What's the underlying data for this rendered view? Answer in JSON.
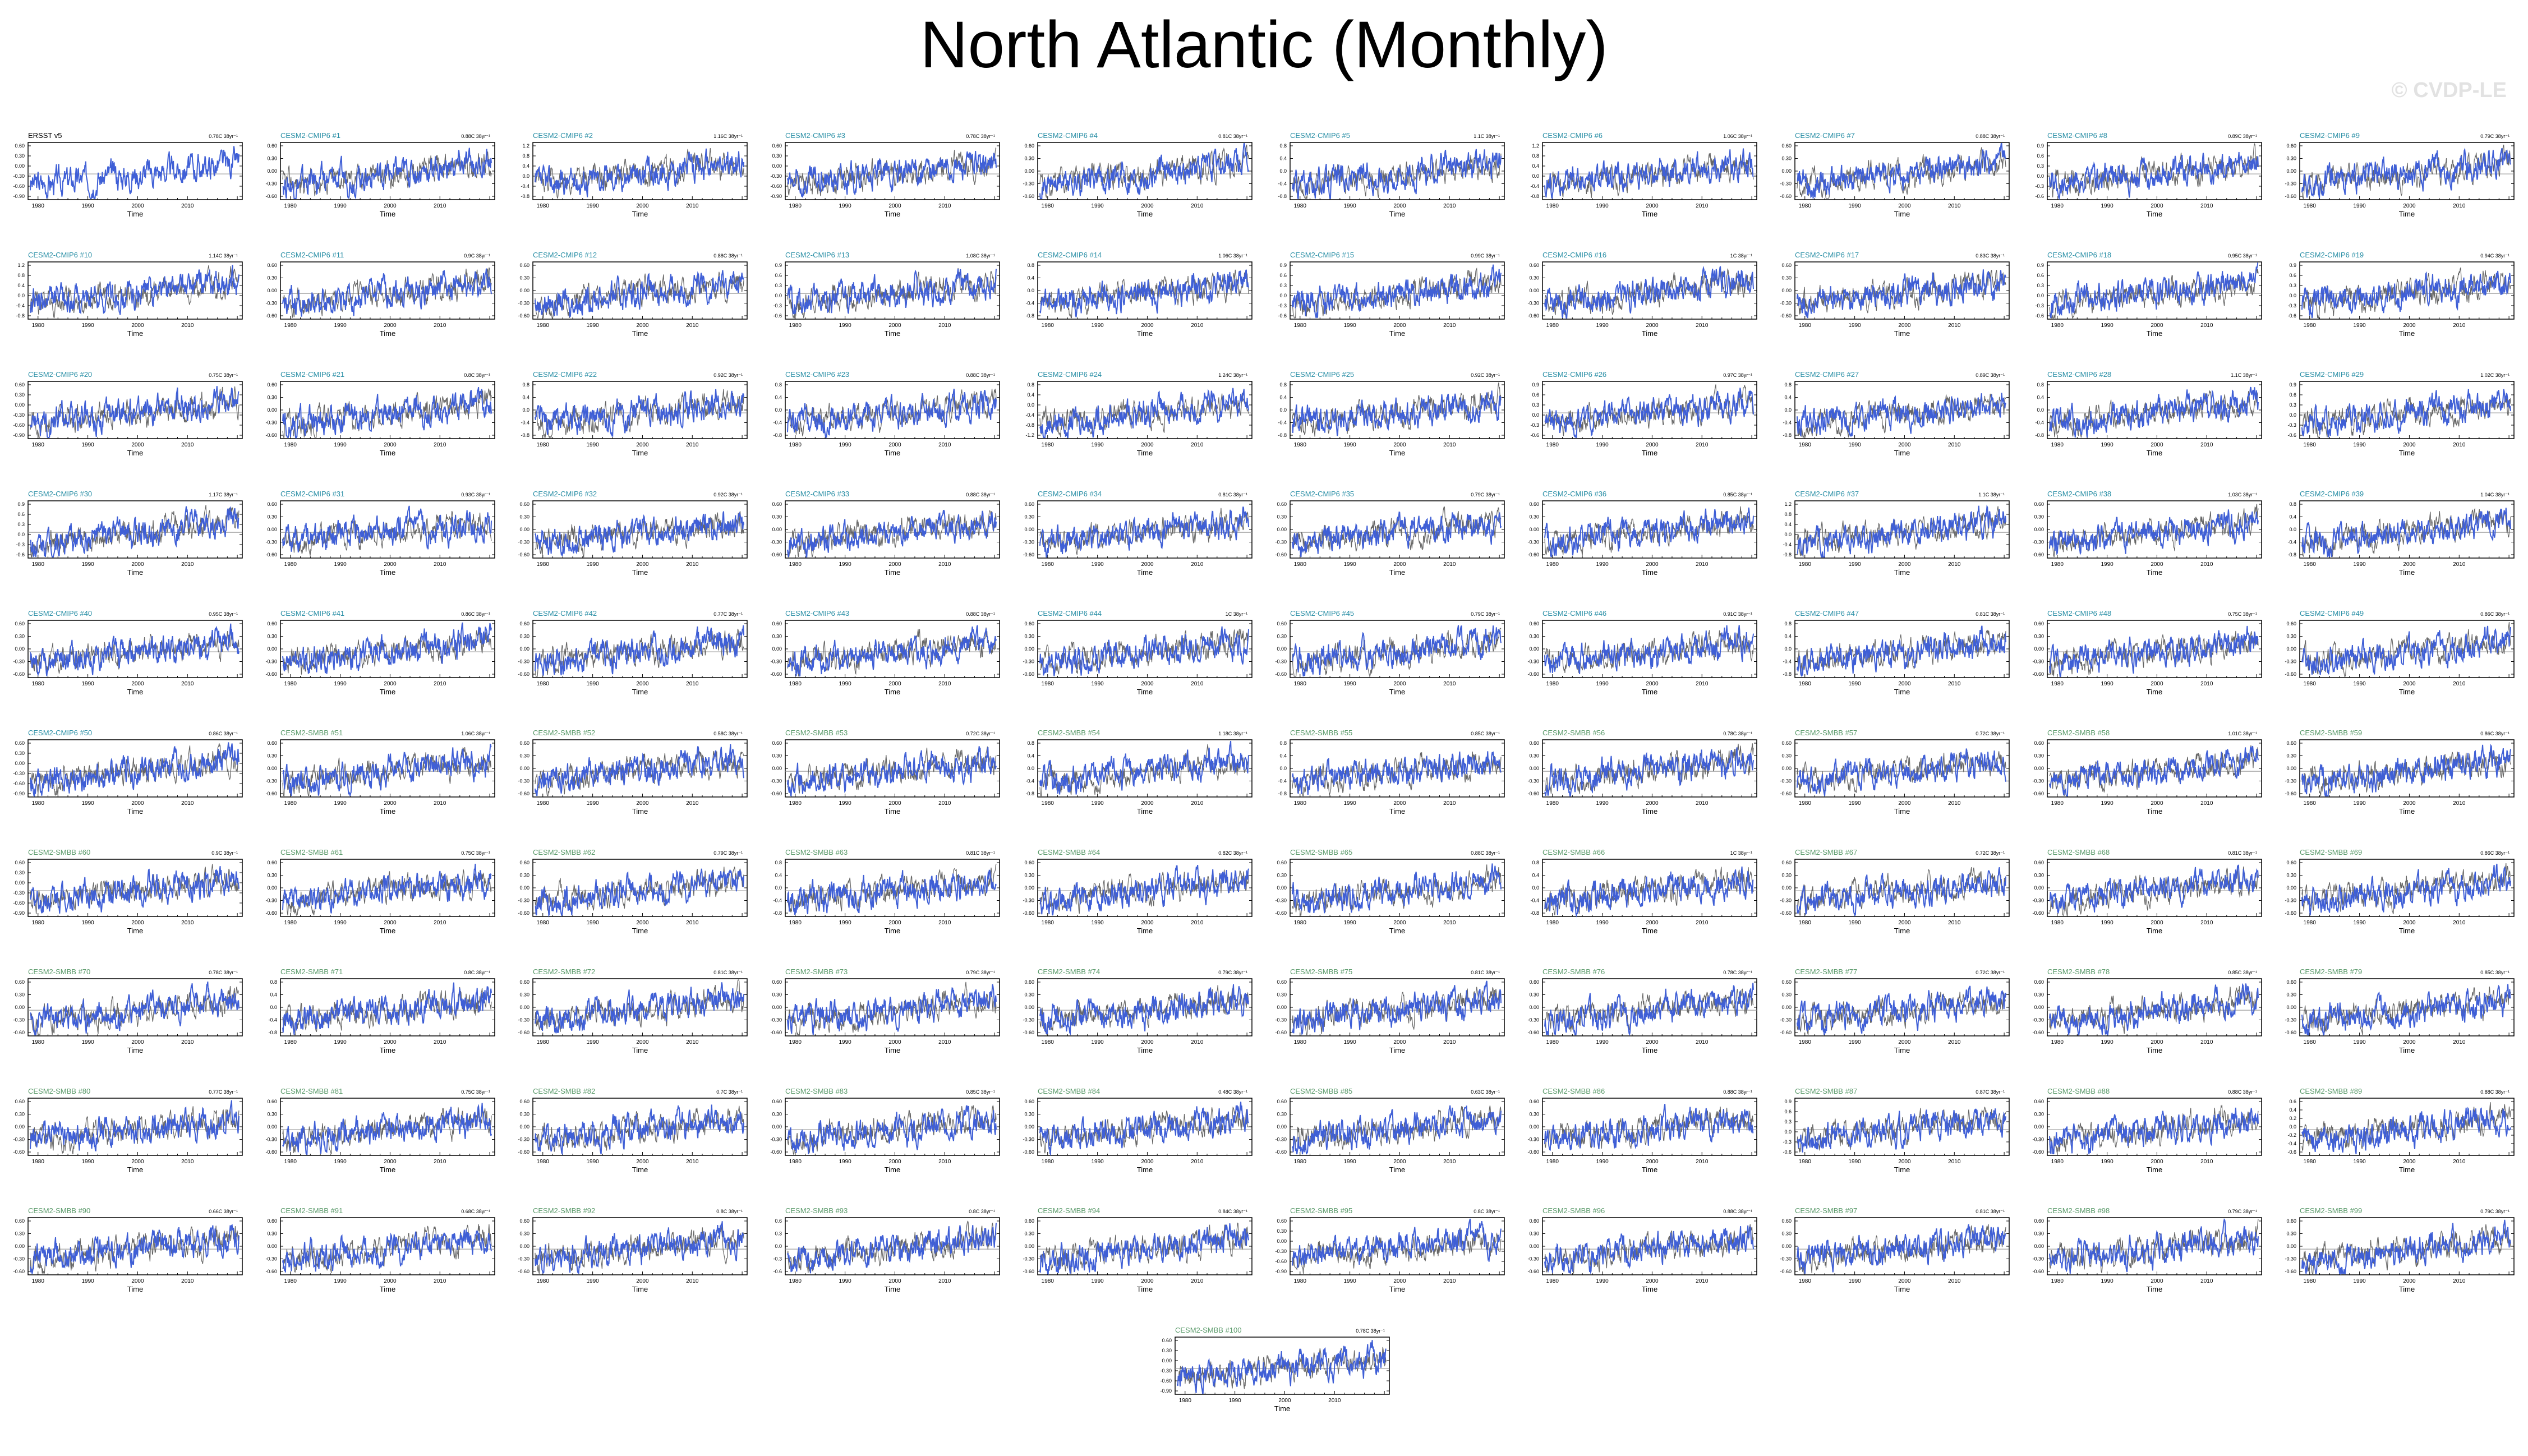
{
  "title": "North Atlantic (Monthly)",
  "watermark": "© CVDP-LE",
  "colors": {
    "model_line": "#3f5fd6",
    "obs_line": "#666666",
    "cmip6_title": "#2a8fa6",
    "smbb_title": "#5a9a6a",
    "obs_title": "#000000"
  },
  "chart_data": {
    "type": "line",
    "panel_count": 101,
    "xlabel": "Time",
    "x_ticks": [
      "1980",
      "1990",
      "2000",
      "2010"
    ],
    "x_range": [
      1978,
      2021
    ],
    "grid": false,
    "y_ticks_sets": {
      "A": [
        "0.60",
        "0.30",
        "0.00",
        "-0.30",
        "-0.60",
        "-0.90"
      ],
      "B": [
        "0.60",
        "0.30",
        "0.00",
        "-0.30",
        "-0.60"
      ],
      "C": [
        "1.2",
        "0.8",
        "0.4",
        "0.0",
        "-0.4",
        "-0.8"
      ],
      "D": [
        "0.8",
        "0.4",
        "0.0",
        "-0.4",
        "-0.8"
      ],
      "E": [
        "0.9",
        "0.6",
        "0.3",
        "0.0",
        "-0.3",
        "-0.6"
      ],
      "F": [
        "0.8",
        "0.4",
        "0.0",
        "-0.4",
        "-0.8",
        "-1.2"
      ],
      "G": [
        "0.6",
        "0.4",
        "0.2",
        "0.0",
        "-0.2",
        "-0.4",
        "-0.6"
      ],
      "H": [
        "0.6",
        "0.3",
        "0.0",
        "-0.3",
        "-0.6"
      ]
    },
    "panels": [
      {
        "title": "ERSST v5",
        "trend": "0.78C 38yr⁻¹",
        "group": "obs",
        "yset": "A"
      },
      {
        "title": "CESM2-CMIP6 #1",
        "trend": "0.88C 38yr⁻¹",
        "group": "cmip6",
        "yset": "B"
      },
      {
        "title": "CESM2-CMIP6 #2",
        "trend": "1.16C 38yr⁻¹",
        "group": "cmip6",
        "yset": "C"
      },
      {
        "title": "CESM2-CMIP6 #3",
        "trend": "0.78C 38yr⁻¹",
        "group": "cmip6",
        "yset": "A"
      },
      {
        "title": "CESM2-CMIP6 #4",
        "trend": "0.81C 38yr⁻¹",
        "group": "cmip6",
        "yset": "B"
      },
      {
        "title": "CESM2-CMIP6 #5",
        "trend": "1.1C 38yr⁻¹",
        "group": "cmip6",
        "yset": "D"
      },
      {
        "title": "CESM2-CMIP6 #6",
        "trend": "1.06C 38yr⁻¹",
        "group": "cmip6",
        "yset": "C"
      },
      {
        "title": "CESM2-CMIP6 #7",
        "trend": "0.88C 38yr⁻¹",
        "group": "cmip6",
        "yset": "B"
      },
      {
        "title": "CESM2-CMIP6 #8",
        "trend": "0.89C 38yr⁻¹",
        "group": "cmip6",
        "yset": "E"
      },
      {
        "title": "CESM2-CMIP6 #9",
        "trend": "0.79C 38yr⁻¹",
        "group": "cmip6",
        "yset": "B"
      },
      {
        "title": "CESM2-CMIP6 #10",
        "trend": "1.14C 38yr⁻¹",
        "group": "cmip6",
        "yset": "C"
      },
      {
        "title": "CESM2-CMIP6 #11",
        "trend": "0.9C 38yr⁻¹",
        "group": "cmip6",
        "yset": "B"
      },
      {
        "title": "CESM2-CMIP6 #12",
        "trend": "0.88C 38yr⁻¹",
        "group": "cmip6",
        "yset": "B"
      },
      {
        "title": "CESM2-CMIP6 #13",
        "trend": "1.08C 38yr⁻¹",
        "group": "cmip6",
        "yset": "E"
      },
      {
        "title": "CESM2-CMIP6 #14",
        "trend": "1.06C 38yr⁻¹",
        "group": "cmip6",
        "yset": "D"
      },
      {
        "title": "CESM2-CMIP6 #15",
        "trend": "0.99C 38yr⁻¹",
        "group": "cmip6",
        "yset": "E"
      },
      {
        "title": "CESM2-CMIP6 #16",
        "trend": "1C 38yr⁻¹",
        "group": "cmip6",
        "yset": "B"
      },
      {
        "title": "CESM2-CMIP6 #17",
        "trend": "0.83C 38yr⁻¹",
        "group": "cmip6",
        "yset": "B"
      },
      {
        "title": "CESM2-CMIP6 #18",
        "trend": "0.95C 38yr⁻¹",
        "group": "cmip6",
        "yset": "E"
      },
      {
        "title": "CESM2-CMIP6 #19",
        "trend": "0.94C 38yr⁻¹",
        "group": "cmip6",
        "yset": "E"
      },
      {
        "title": "CESM2-CMIP6 #20",
        "trend": "0.75C 38yr⁻¹",
        "group": "cmip6",
        "yset": "A"
      },
      {
        "title": "CESM2-CMIP6 #21",
        "trend": "0.8C 38yr⁻¹",
        "group": "cmip6",
        "yset": "B"
      },
      {
        "title": "CESM2-CMIP6 #22",
        "trend": "0.92C 38yr⁻¹",
        "group": "cmip6",
        "yset": "D"
      },
      {
        "title": "CESM2-CMIP6 #23",
        "trend": "0.88C 38yr⁻¹",
        "group": "cmip6",
        "yset": "D"
      },
      {
        "title": "CESM2-CMIP6 #24",
        "trend": "1.24C 38yr⁻¹",
        "group": "cmip6",
        "yset": "F"
      },
      {
        "title": "CESM2-CMIP6 #25",
        "trend": "0.92C 38yr⁻¹",
        "group": "cmip6",
        "yset": "D"
      },
      {
        "title": "CESM2-CMIP6 #26",
        "trend": "0.97C 38yr⁻¹",
        "group": "cmip6",
        "yset": "E"
      },
      {
        "title": "CESM2-CMIP6 #27",
        "trend": "0.89C 38yr⁻¹",
        "group": "cmip6",
        "yset": "D"
      },
      {
        "title": "CESM2-CMIP6 #28",
        "trend": "1.1C 38yr⁻¹",
        "group": "cmip6",
        "yset": "D"
      },
      {
        "title": "CESM2-CMIP6 #29",
        "trend": "1.02C 38yr⁻¹",
        "group": "cmip6",
        "yset": "E"
      },
      {
        "title": "CESM2-CMIP6 #30",
        "trend": "1.17C 38yr⁻¹",
        "group": "cmip6",
        "yset": "E"
      },
      {
        "title": "CESM2-CMIP6 #31",
        "trend": "0.93C 38yr⁻¹",
        "group": "cmip6",
        "yset": "B"
      },
      {
        "title": "CESM2-CMIP6 #32",
        "trend": "0.92C 38yr⁻¹",
        "group": "cmip6",
        "yset": "B"
      },
      {
        "title": "CESM2-CMIP6 #33",
        "trend": "0.88C 38yr⁻¹",
        "group": "cmip6",
        "yset": "B"
      },
      {
        "title": "CESM2-CMIP6 #34",
        "trend": "0.81C 38yr⁻¹",
        "group": "cmip6",
        "yset": "B"
      },
      {
        "title": "CESM2-CMIP6 #35",
        "trend": "0.79C 38yr⁻¹",
        "group": "cmip6",
        "yset": "B"
      },
      {
        "title": "CESM2-CMIP6 #36",
        "trend": "0.85C 38yr⁻¹",
        "group": "cmip6",
        "yset": "B"
      },
      {
        "title": "CESM2-CMIP6 #37",
        "trend": "1.1C 38yr⁻¹",
        "group": "cmip6",
        "yset": "C"
      },
      {
        "title": "CESM2-CMIP6 #38",
        "trend": "1.03C 38yr⁻¹",
        "group": "cmip6",
        "yset": "B"
      },
      {
        "title": "CESM2-CMIP6 #39",
        "trend": "1.04C 38yr⁻¹",
        "group": "cmip6",
        "yset": "D"
      },
      {
        "title": "CESM2-CMIP6 #40",
        "trend": "0.95C 38yr⁻¹",
        "group": "cmip6",
        "yset": "B"
      },
      {
        "title": "CESM2-CMIP6 #41",
        "trend": "0.86C 38yr⁻¹",
        "group": "cmip6",
        "yset": "B"
      },
      {
        "title": "CESM2-CMIP6 #42",
        "trend": "0.77C 38yr⁻¹",
        "group": "cmip6",
        "yset": "B"
      },
      {
        "title": "CESM2-CMIP6 #43",
        "trend": "0.88C 38yr⁻¹",
        "group": "cmip6",
        "yset": "B"
      },
      {
        "title": "CESM2-CMIP6 #44",
        "trend": "1C 38yr⁻¹",
        "group": "cmip6",
        "yset": "B"
      },
      {
        "title": "CESM2-CMIP6 #45",
        "trend": "0.79C 38yr⁻¹",
        "group": "cmip6",
        "yset": "B"
      },
      {
        "title": "CESM2-CMIP6 #46",
        "trend": "0.91C 38yr⁻¹",
        "group": "cmip6",
        "yset": "B"
      },
      {
        "title": "CESM2-CMIP6 #47",
        "trend": "0.81C 38yr⁻¹",
        "group": "cmip6",
        "yset": "D"
      },
      {
        "title": "CESM2-CMIP6 #48",
        "trend": "0.75C 38yr⁻¹",
        "group": "cmip6",
        "yset": "B"
      },
      {
        "title": "CESM2-CMIP6 #49",
        "trend": "0.86C 38yr⁻¹",
        "group": "cmip6",
        "yset": "B"
      },
      {
        "title": "CESM2-CMIP6 #50",
        "trend": "0.86C 38yr⁻¹",
        "group": "cmip6",
        "yset": "A"
      },
      {
        "title": "CESM2-SMBB #51",
        "trend": "1.06C 38yr⁻¹",
        "group": "smbb",
        "yset": "B"
      },
      {
        "title": "CESM2-SMBB #52",
        "trend": "0.58C 38yr⁻¹",
        "group": "smbb",
        "yset": "B"
      },
      {
        "title": "CESM2-SMBB #53",
        "trend": "0.72C 38yr⁻¹",
        "group": "smbb",
        "yset": "B"
      },
      {
        "title": "CESM2-SMBB #54",
        "trend": "1.18C 38yr⁻¹",
        "group": "smbb",
        "yset": "D"
      },
      {
        "title": "CESM2-SMBB #55",
        "trend": "0.85C 38yr⁻¹",
        "group": "smbb",
        "yset": "D"
      },
      {
        "title": "CESM2-SMBB #56",
        "trend": "0.78C 38yr⁻¹",
        "group": "smbb",
        "yset": "B"
      },
      {
        "title": "CESM2-SMBB #57",
        "trend": "0.72C 38yr⁻¹",
        "group": "smbb",
        "yset": "B"
      },
      {
        "title": "CESM2-SMBB #58",
        "trend": "1.01C 38yr⁻¹",
        "group": "smbb",
        "yset": "B"
      },
      {
        "title": "CESM2-SMBB #59",
        "trend": "0.86C 38yr⁻¹",
        "group": "smbb",
        "yset": "B"
      },
      {
        "title": "CESM2-SMBB #60",
        "trend": "0.9C 38yr⁻¹",
        "group": "smbb",
        "yset": "A"
      },
      {
        "title": "CESM2-SMBB #61",
        "trend": "0.75C 38yr⁻¹",
        "group": "smbb",
        "yset": "B"
      },
      {
        "title": "CESM2-SMBB #62",
        "trend": "0.79C 38yr⁻¹",
        "group": "smbb",
        "yset": "B"
      },
      {
        "title": "CESM2-SMBB #63",
        "trend": "0.81C 38yr⁻¹",
        "group": "smbb",
        "yset": "D"
      },
      {
        "title": "CESM2-SMBB #64",
        "trend": "0.82C 38yr⁻¹",
        "group": "smbb",
        "yset": "B"
      },
      {
        "title": "CESM2-SMBB #65",
        "trend": "0.88C 38yr⁻¹",
        "group": "smbb",
        "yset": "B"
      },
      {
        "title": "CESM2-SMBB #66",
        "trend": "1C 38yr⁻¹",
        "group": "smbb",
        "yset": "D"
      },
      {
        "title": "CESM2-SMBB #67",
        "trend": "0.72C 38yr⁻¹",
        "group": "smbb",
        "yset": "B"
      },
      {
        "title": "CESM2-SMBB #68",
        "trend": "0.81C 38yr⁻¹",
        "group": "smbb",
        "yset": "B"
      },
      {
        "title": "CESM2-SMBB #69",
        "trend": "0.86C 38yr⁻¹",
        "group": "smbb",
        "yset": "B"
      },
      {
        "title": "CESM2-SMBB #70",
        "trend": "0.78C 38yr⁻¹",
        "group": "smbb",
        "yset": "B"
      },
      {
        "title": "CESM2-SMBB #71",
        "trend": "0.8C 38yr⁻¹",
        "group": "smbb",
        "yset": "D"
      },
      {
        "title": "CESM2-SMBB #72",
        "trend": "0.81C 38yr⁻¹",
        "group": "smbb",
        "yset": "B"
      },
      {
        "title": "CESM2-SMBB #73",
        "trend": "0.79C 38yr⁻¹",
        "group": "smbb",
        "yset": "B"
      },
      {
        "title": "CESM2-SMBB #74",
        "trend": "0.79C 38yr⁻¹",
        "group": "smbb",
        "yset": "B"
      },
      {
        "title": "CESM2-SMBB #75",
        "trend": "0.81C 38yr⁻¹",
        "group": "smbb",
        "yset": "B"
      },
      {
        "title": "CESM2-SMBB #76",
        "trend": "0.78C 38yr⁻¹",
        "group": "smbb",
        "yset": "B"
      },
      {
        "title": "CESM2-SMBB #77",
        "trend": "0.72C 38yr⁻¹",
        "group": "smbb",
        "yset": "B"
      },
      {
        "title": "CESM2-SMBB #78",
        "trend": "0.85C 38yr⁻¹",
        "group": "smbb",
        "yset": "B"
      },
      {
        "title": "CESM2-SMBB #79",
        "trend": "0.85C 38yr⁻¹",
        "group": "smbb",
        "yset": "B"
      },
      {
        "title": "CESM2-SMBB #80",
        "trend": "0.77C 38yr⁻¹",
        "group": "smbb",
        "yset": "B"
      },
      {
        "title": "CESM2-SMBB #81",
        "trend": "0.75C 38yr⁻¹",
        "group": "smbb",
        "yset": "B"
      },
      {
        "title": "CESM2-SMBB #82",
        "trend": "0.7C 38yr⁻¹",
        "group": "smbb",
        "yset": "B"
      },
      {
        "title": "CESM2-SMBB #83",
        "trend": "0.85C 38yr⁻¹",
        "group": "smbb",
        "yset": "B"
      },
      {
        "title": "CESM2-SMBB #84",
        "trend": "0.48C 38yr⁻¹",
        "group": "smbb",
        "yset": "B"
      },
      {
        "title": "CESM2-SMBB #85",
        "trend": "0.63C 38yr⁻¹",
        "group": "smbb",
        "yset": "B"
      },
      {
        "title": "CESM2-SMBB #86",
        "trend": "0.88C 38yr⁻¹",
        "group": "smbb",
        "yset": "B"
      },
      {
        "title": "CESM2-SMBB #87",
        "trend": "0.87C 38yr⁻¹",
        "group": "smbb",
        "yset": "E"
      },
      {
        "title": "CESM2-SMBB #88",
        "trend": "0.88C 38yr⁻¹",
        "group": "smbb",
        "yset": "B"
      },
      {
        "title": "CESM2-SMBB #89",
        "trend": "0.88C 38yr⁻¹",
        "group": "smbb",
        "yset": "G"
      },
      {
        "title": "CESM2-SMBB #90",
        "trend": "0.66C 38yr⁻¹",
        "group": "smbb",
        "yset": "B"
      },
      {
        "title": "CESM2-SMBB #91",
        "trend": "0.68C 38yr⁻¹",
        "group": "smbb",
        "yset": "B"
      },
      {
        "title": "CESM2-SMBB #92",
        "trend": "0.8C 38yr⁻¹",
        "group": "smbb",
        "yset": "B"
      },
      {
        "title": "CESM2-SMBB #93",
        "trend": "0.8C 38yr⁻¹",
        "group": "smbb",
        "yset": "H"
      },
      {
        "title": "CESM2-SMBB #94",
        "trend": "0.84C 38yr⁻¹",
        "group": "smbb",
        "yset": "B"
      },
      {
        "title": "CESM2-SMBB #95",
        "trend": "0.8C 38yr⁻¹",
        "group": "smbb",
        "yset": "A"
      },
      {
        "title": "CESM2-SMBB #96",
        "trend": "0.88C 38yr⁻¹",
        "group": "smbb",
        "yset": "B"
      },
      {
        "title": "CESM2-SMBB #97",
        "trend": "0.81C 38yr⁻¹",
        "group": "smbb",
        "yset": "B"
      },
      {
        "title": "CESM2-SMBB #98",
        "trend": "0.79C 38yr⁻¹",
        "group": "smbb",
        "yset": "B"
      },
      {
        "title": "CESM2-SMBB #99",
        "trend": "0.79C 38yr⁻¹",
        "group": "smbb",
        "yset": "B"
      },
      {
        "title": "CESM2-SMBB #100",
        "trend": "0.78C 38yr⁻¹",
        "group": "smbb",
        "yset": "A"
      }
    ]
  }
}
